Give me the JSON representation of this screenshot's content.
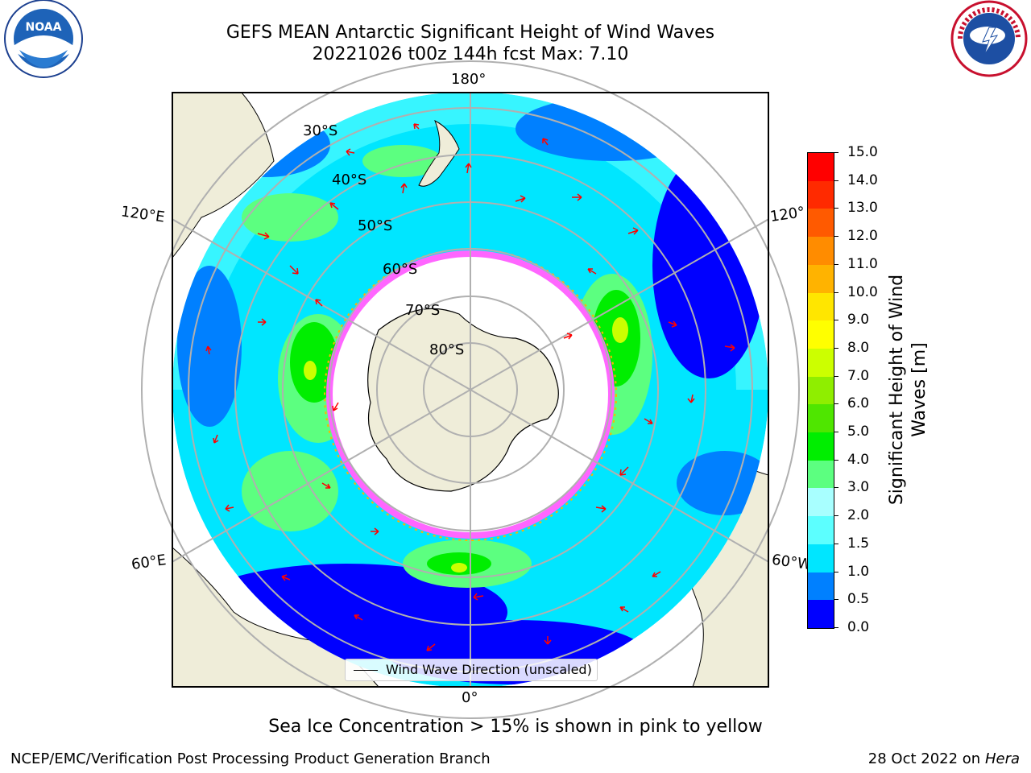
{
  "header": {
    "title_line1": "GEFS MEAN Antarctic Significant Height of Wind Waves",
    "title_line2": "20221026 t00z 144h fcst   Max: 7.10"
  },
  "logos": {
    "left": "NOAA",
    "right": "NATIONAL WEATHER SERVICE"
  },
  "map": {
    "longitude_labels": {
      "top": "180°",
      "bottom": "0°",
      "upper_left": "120°E",
      "lower_left": "60°E",
      "upper_right": "120°",
      "lower_right": "60°W"
    },
    "latitude_labels": [
      "30°S",
      "40°S",
      "50°S",
      "60°S",
      "70°S",
      "80°S"
    ],
    "legend": "Wind Wave Direction (unscaled)"
  },
  "colorbar": {
    "label": "Significant Height of Wind Waves [m]",
    "ticks": [
      "15.0",
      "14.0",
      "13.0",
      "12.0",
      "11.0",
      "10.0",
      "9.0",
      "8.0",
      "7.0",
      "6.0",
      "5.0",
      "4.0",
      "3.0",
      "2.0",
      "1.5",
      "1.0",
      "0.5",
      "0.0"
    ],
    "colors": [
      "#0000ff",
      "#0080ff",
      "#00e6ff",
      "#5cffff",
      "#a8ffff",
      "#5cff80",
      "#00ee00",
      "#4fe600",
      "#8fee00",
      "#ccff00",
      "#ffff00",
      "#ffe600",
      "#ffb300",
      "#ff8c00",
      "#ff5a00",
      "#ff2a00",
      "#ff0000"
    ]
  },
  "sea_ice_note": "Sea Ice Concentration > 15% is shown in pink to yellow",
  "footer": {
    "left": "NCEP/EMC/Verification Post Processing Product Generation Branch",
    "right_date": "28 Oct 2022 on ",
    "right_machine": "Hera"
  }
}
